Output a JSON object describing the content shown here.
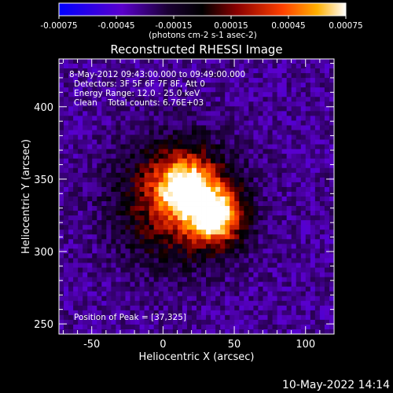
{
  "colorbar": {
    "tick_labels": [
      "-0.00075",
      "-0.00045",
      "-0.00015",
      "0.00015",
      "0.00045",
      "0.00075"
    ],
    "unit_label": "(photons cm-2 s-1 asec-2)",
    "range": [
      -0.00075,
      0.00075
    ]
  },
  "title": "Reconstructed RHESSI Image",
  "info": {
    "time_range": "8-May-2012 09:43:00.000 to 09:49:00.000",
    "detectors": "Detectors: 3F 5F 6F 7F 8F, Att 0",
    "energy": "Energy Range: 12.0 - 25.0 keV",
    "clean": "Clean    Total counts: 6.76E+03",
    "peak": "Position of Peak = [37,325]"
  },
  "axes": {
    "x_label": "Heliocentric X (arcsec)",
    "y_label": "Heliocentric Y (arcsec)",
    "x_ticks": [
      -50,
      0,
      50,
      100
    ],
    "y_ticks": [
      250,
      300,
      350,
      400
    ],
    "x_range": [
      -73,
      120
    ],
    "y_range": [
      243,
      433
    ]
  },
  "peak": {
    "x": 37,
    "y": 325
  },
  "footer": "10-May-2022 14:14"
}
